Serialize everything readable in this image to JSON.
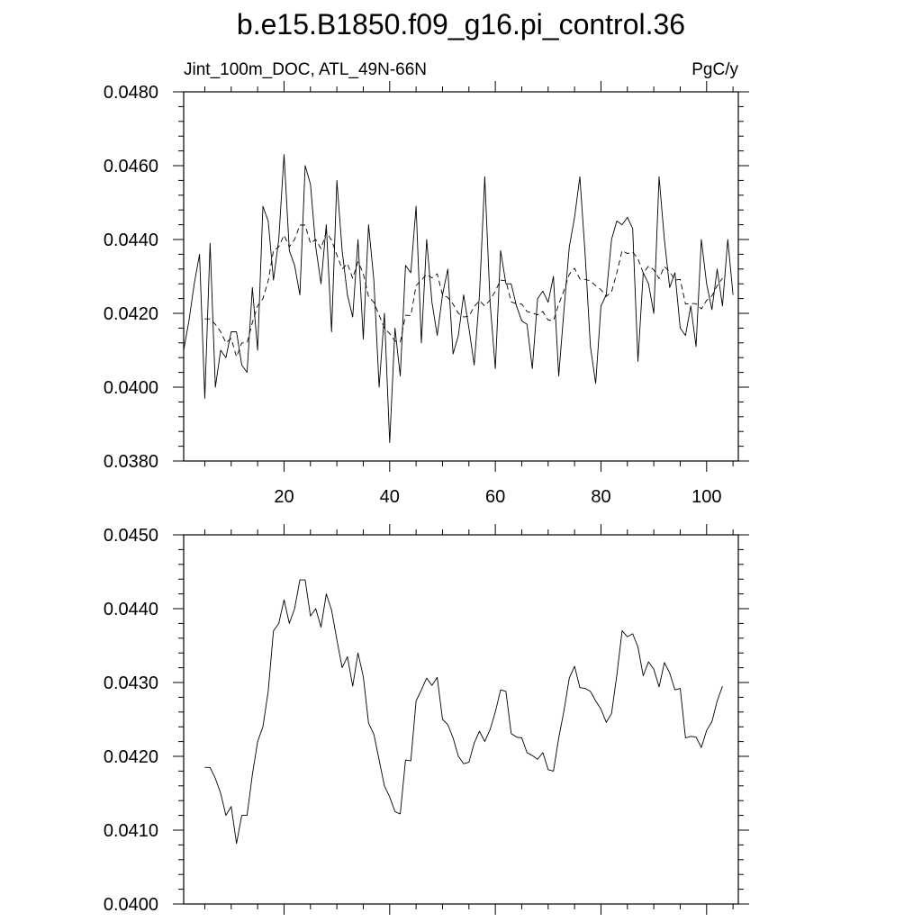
{
  "title": "b.e15.B1850.f09_g16.pi_control.36",
  "top_panel": {
    "left_label": "Jint_100m_DOC, ATL_49N-66N",
    "right_label": "PgC/y"
  },
  "chart_data": [
    {
      "type": "line",
      "panel": "top",
      "xlim": [
        1,
        106
      ],
      "ylim": [
        0.038,
        0.048
      ],
      "x_major_ticks": [
        20,
        40,
        60,
        80,
        100
      ],
      "y_major_ticks": [
        "0.0380",
        "0.0400",
        "0.0420",
        "0.0440",
        "0.0460",
        "0.0480"
      ],
      "x_tick_labels_shown": true,
      "series": [
        {
          "style": "solid",
          "x_start": 1,
          "values": [
            0.041,
            0.0418,
            0.0428,
            0.0436,
            0.0397,
            0.0439,
            0.04,
            0.041,
            0.0408,
            0.0415,
            0.0415,
            0.0406,
            0.0404,
            0.0427,
            0.041,
            0.0449,
            0.0445,
            0.0429,
            0.044,
            0.0463,
            0.0437,
            0.0433,
            0.0425,
            0.046,
            0.0455,
            0.0438,
            0.0428,
            0.0444,
            0.0415,
            0.0456,
            0.0437,
            0.0425,
            0.0419,
            0.044,
            0.0413,
            0.0444,
            0.0429,
            0.04,
            0.042,
            0.0385,
            0.0416,
            0.0403,
            0.0433,
            0.0431,
            0.0449,
            0.0412,
            0.044,
            0.0423,
            0.0414,
            0.0425,
            0.0432,
            0.0409,
            0.0414,
            0.0425,
            0.0416,
            0.0406,
            0.0425,
            0.0457,
            0.0423,
            0.0405,
            0.0437,
            0.0428,
            0.0428,
            0.0422,
            0.0418,
            0.0417,
            0.0405,
            0.0424,
            0.0426,
            0.0423,
            0.043,
            0.0403,
            0.0421,
            0.0438,
            0.0446,
            0.0457,
            0.0436,
            0.0411,
            0.0401,
            0.0422,
            0.0425,
            0.044,
            0.0445,
            0.0444,
            0.0446,
            0.0443,
            0.0407,
            0.0431,
            0.0428,
            0.042,
            0.0457,
            0.044,
            0.0427,
            0.0431,
            0.0416,
            0.0414,
            0.0422,
            0.0411,
            0.044,
            0.0428,
            0.0421,
            0.0432,
            0.0422,
            0.044,
            0.0425
          ]
        },
        {
          "style": "dashed",
          "x_start": 5,
          "values": [
            0.04185,
            0.04185,
            0.0417,
            0.0415,
            0.0412,
            0.04132,
            0.04082,
            0.0412,
            0.0412,
            0.04175,
            0.0422,
            0.0424,
            0.04288,
            0.0437,
            0.0438,
            0.04412,
            0.0438,
            0.044,
            0.04439,
            0.04439,
            0.0439,
            0.044,
            0.04375,
            0.0442,
            0.04398,
            0.04358,
            0.0432,
            0.04335,
            0.04295,
            0.0434,
            0.04308,
            0.04245,
            0.0423,
            0.04195,
            0.0416,
            0.04145,
            0.04125,
            0.04122,
            0.04195,
            0.04194,
            0.04275,
            0.0429,
            0.04306,
            0.04296,
            0.04307,
            0.0425,
            0.04243,
            0.04225,
            0.042,
            0.0419,
            0.04192,
            0.04218,
            0.04234,
            0.0422,
            0.04236,
            0.0426,
            0.0429,
            0.04288,
            0.04231,
            0.04226,
            0.04225,
            0.04205,
            0.04201,
            0.04196,
            0.04205,
            0.04182,
            0.0418,
            0.04225,
            0.04262,
            0.04306,
            0.04322,
            0.04293,
            0.04292,
            0.04288,
            0.04275,
            0.04264,
            0.04246,
            0.04258,
            0.0431,
            0.0437,
            0.04362,
            0.04366,
            0.04348,
            0.04309,
            0.04328,
            0.04318,
            0.04294,
            0.04327,
            0.04313,
            0.0429,
            0.04292,
            0.04225,
            0.04227,
            0.04226,
            0.04212,
            0.04235,
            0.04247,
            0.04275,
            0.04295
          ]
        }
      ]
    },
    {
      "type": "line",
      "panel": "bottom",
      "xlim": [
        1,
        106
      ],
      "ylim": [
        0.04,
        0.045
      ],
      "x_major_ticks": [
        20,
        40,
        60,
        80,
        100
      ],
      "y_major_ticks": [
        "0.0400",
        "0.0410",
        "0.0420",
        "0.0430",
        "0.0440",
        "0.0450"
      ],
      "x_tick_labels_shown": false,
      "series": [
        {
          "style": "solid",
          "x_start": 5,
          "values": [
            0.04185,
            0.04185,
            0.0417,
            0.0415,
            0.0412,
            0.04132,
            0.04082,
            0.0412,
            0.0412,
            0.04175,
            0.0422,
            0.0424,
            0.04288,
            0.0437,
            0.0438,
            0.04412,
            0.0438,
            0.044,
            0.04439,
            0.04439,
            0.0439,
            0.044,
            0.04375,
            0.0442,
            0.04398,
            0.04358,
            0.0432,
            0.04335,
            0.04295,
            0.0434,
            0.04308,
            0.04245,
            0.0423,
            0.04195,
            0.0416,
            0.04145,
            0.04125,
            0.04122,
            0.04195,
            0.04194,
            0.04275,
            0.0429,
            0.04306,
            0.04296,
            0.04307,
            0.0425,
            0.04243,
            0.04225,
            0.042,
            0.0419,
            0.04192,
            0.04218,
            0.04234,
            0.0422,
            0.04236,
            0.0426,
            0.0429,
            0.04288,
            0.04231,
            0.04226,
            0.04225,
            0.04205,
            0.04201,
            0.04196,
            0.04205,
            0.04182,
            0.0418,
            0.04225,
            0.04262,
            0.04306,
            0.04322,
            0.04293,
            0.04292,
            0.04288,
            0.04275,
            0.04264,
            0.04246,
            0.04258,
            0.0431,
            0.0437,
            0.04362,
            0.04366,
            0.04348,
            0.04309,
            0.04328,
            0.04318,
            0.04294,
            0.04327,
            0.04313,
            0.0429,
            0.04292,
            0.04225,
            0.04227,
            0.04226,
            0.04212,
            0.04235,
            0.04247,
            0.04275,
            0.04295
          ]
        }
      ]
    }
  ]
}
